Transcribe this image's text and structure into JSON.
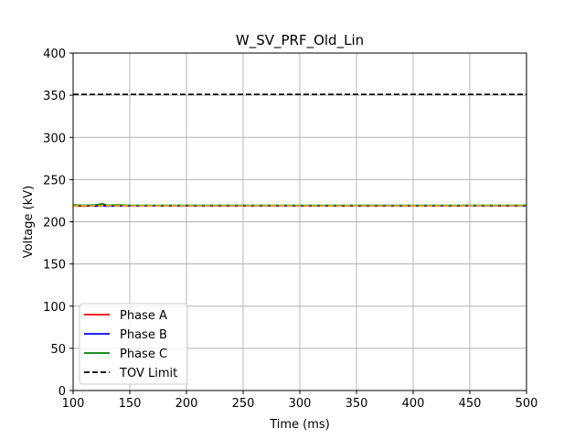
{
  "chart_data": {
    "type": "line",
    "title": "W_SV_PRF_Old_Lin",
    "xlabel": "Time (ms)",
    "ylabel": "Voltage (kV)",
    "xlim": [
      100,
      500
    ],
    "ylim": [
      0,
      400
    ],
    "xticks": [
      100,
      150,
      200,
      250,
      300,
      350,
      400,
      450,
      500
    ],
    "yticks": [
      0,
      50,
      100,
      150,
      200,
      250,
      300,
      350,
      400
    ],
    "grid": true,
    "legend_position": "lower-left",
    "series": [
      {
        "name": "Phase A",
        "color": "#ff0000",
        "style": "solid",
        "x": [
          100,
          110,
          120,
          126,
          130,
          140,
          150,
          200,
          250,
          300,
          350,
          400,
          450,
          500
        ],
        "y": [
          219,
          218.5,
          219,
          219.5,
          219,
          219,
          219,
          219,
          219,
          219,
          219,
          219,
          219,
          219
        ]
      },
      {
        "name": "Phase B",
        "color": "#0000ff",
        "style": "solid",
        "x": [
          100,
          110,
          120,
          126,
          130,
          140,
          150,
          200,
          250,
          300,
          350,
          400,
          450,
          500
        ],
        "y": [
          219,
          219.5,
          218.5,
          219,
          218.5,
          219,
          219,
          219,
          219,
          219,
          219,
          219,
          219,
          219
        ]
      },
      {
        "name": "Phase C",
        "color": "#008000",
        "style": "solid",
        "x": [
          100,
          110,
          120,
          126,
          130,
          140,
          150,
          200,
          250,
          300,
          350,
          400,
          450,
          500
        ],
        "y": [
          220,
          219.5,
          220,
          221.5,
          219.5,
          220,
          219.5,
          219.5,
          219.5,
          219.5,
          219.5,
          219.5,
          219.5,
          219.5
        ]
      },
      {
        "name": "TOV Limit",
        "color": "#000000",
        "style": "dashed",
        "x": [
          100,
          500
        ],
        "y": [
          351,
          351
        ]
      },
      {
        "color": "#ffa500",
        "style": "dashed",
        "x": [
          100,
          500
        ],
        "y": [
          219,
          219
        ]
      }
    ]
  }
}
